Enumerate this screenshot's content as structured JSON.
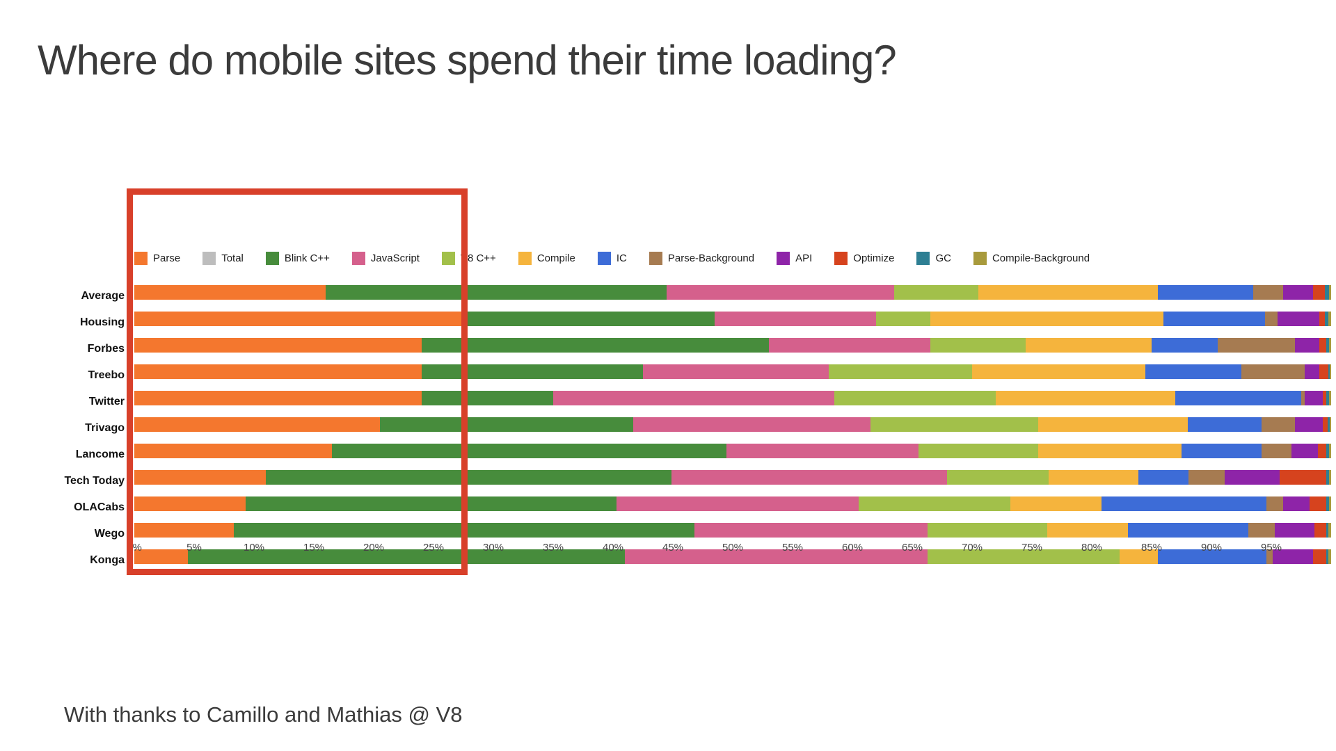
{
  "title": "Where do mobile sites spend their time loading?",
  "footer": "With thanks to Camillo and Mathias @ V8",
  "highlight_box": {
    "color": "#d8402a",
    "x_range_pct": [
      0,
      27.5
    ]
  },
  "chart_data": {
    "type": "bar",
    "stacked": true,
    "orientation": "horizontal",
    "unit": "%",
    "title": "Where do mobile sites spend their time loading?",
    "xlim": [
      0,
      100
    ],
    "grid": false,
    "legend_position": "top",
    "x_ticks": [
      "0%",
      "5%",
      "10%",
      "15%",
      "20%",
      "25%",
      "30%",
      "35%",
      "40%",
      "45%",
      "50%",
      "55%",
      "60%",
      "65%",
      "70%",
      "75%",
      "80%",
      "85%",
      "90%",
      "95%"
    ],
    "categories": [
      "Average",
      "Housing",
      "Forbes",
      "Treebo",
      "Twitter",
      "Trivago",
      "Lancome",
      "Tech Today",
      "OLACabs",
      "Wego",
      "Konga"
    ],
    "series": [
      {
        "name": "Parse",
        "color": "#f4772e",
        "values": [
          16,
          27.5,
          24,
          24,
          24,
          20.5,
          16.5,
          11,
          9.3,
          8.3,
          4.5
        ]
      },
      {
        "name": "Total",
        "color": "#bdbdbd",
        "values": [
          0,
          0,
          0,
          0,
          0,
          0,
          0,
          0,
          0,
          0,
          0
        ]
      },
      {
        "name": "Blink C++",
        "color": "#478c3c",
        "values": [
          28.5,
          21,
          29,
          18.5,
          11,
          21.2,
          33,
          33.9,
          31,
          38.5,
          36.5
        ]
      },
      {
        "name": "JavaScript",
        "color": "#d5608c",
        "values": [
          19,
          13.5,
          13.5,
          15.5,
          23.5,
          19.8,
          16,
          23,
          20.2,
          19.5,
          25.3
        ]
      },
      {
        "name": "V8 C++",
        "color": "#a2c04a",
        "values": [
          7,
          4.5,
          8,
          12,
          13.5,
          14,
          10,
          8.5,
          12.7,
          10,
          16
        ]
      },
      {
        "name": "Compile",
        "color": "#f5b43d",
        "values": [
          15,
          19.5,
          10.5,
          14.5,
          15,
          12.5,
          12,
          7.5,
          7.6,
          6.7,
          3.2
        ]
      },
      {
        "name": "IC",
        "color": "#3d6cd7",
        "values": [
          8,
          8.5,
          5.5,
          8,
          10.5,
          6.2,
          6.7,
          4.2,
          13.8,
          10.1,
          9.1
        ]
      },
      {
        "name": "Parse-Background",
        "color": "#a67b51",
        "values": [
          2.5,
          1,
          6.5,
          5.3,
          0.3,
          2.8,
          2.5,
          3,
          1.4,
          2.2,
          0.5
        ]
      },
      {
        "name": "API",
        "color": "#8e24a8",
        "values": [
          2.5,
          3.5,
          2,
          1.2,
          1.5,
          2.3,
          2.2,
          4.6,
          2.2,
          3.3,
          3.4
        ]
      },
      {
        "name": "Optimize",
        "color": "#d6431e",
        "values": [
          1,
          0.5,
          0.6,
          0.8,
          0.3,
          0.4,
          0.7,
          3.9,
          1.4,
          1,
          1.1
        ]
      },
      {
        "name": "GC",
        "color": "#2e7f93",
        "values": [
          0.3,
          0.3,
          0.2,
          0.1,
          0.2,
          0.2,
          0.2,
          0.2,
          0.2,
          0.2,
          0.2
        ]
      },
      {
        "name": "Compile-Background",
        "color": "#a89a3c",
        "values": [
          0.2,
          0.2,
          0.2,
          0.1,
          0.2,
          0.1,
          0.2,
          0.2,
          0.2,
          0.2,
          0.2
        ]
      }
    ]
  }
}
